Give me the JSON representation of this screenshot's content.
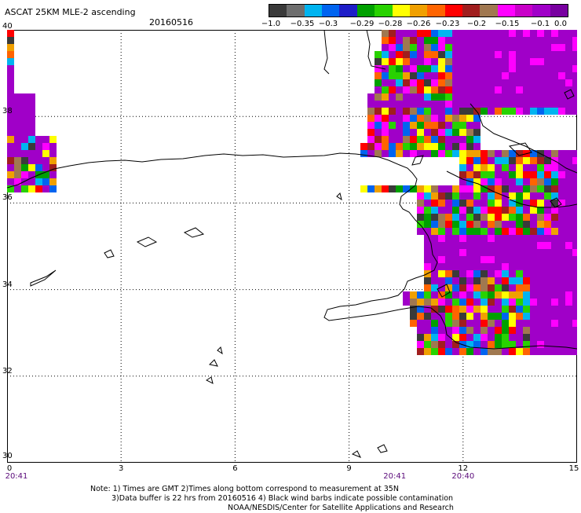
{
  "header": {
    "title": "ASCAT 25KM MLE-2 ascending",
    "date": "20160516"
  },
  "colorbar": {
    "colors": [
      "#3a3a3a",
      "#6e6e6e",
      "#00b4f0",
      "#0064f0",
      "#1e1ec8",
      "#00a000",
      "#28d200",
      "#ffff00",
      "#f0a000",
      "#ff6400",
      "#ff0000",
      "#a01e1e",
      "#a07850",
      "#ff00ff",
      "#c800c8",
      "#a000c8",
      "#7800a0"
    ],
    "labels": [
      "−1.0",
      "−0.35",
      "−0.3",
      "−0.29",
      "−0.28",
      "−0.26",
      "−0.23",
      "−0.2",
      "−0.15",
      "−0.1",
      "0.0"
    ]
  },
  "map": {
    "lat_range": [
      30,
      40
    ],
    "lon_range": [
      0,
      15
    ],
    "lat_labels": [
      "40",
      "38",
      "36",
      "34",
      "32",
      "30"
    ],
    "lon_labels": [
      "0",
      "3",
      "6",
      "9",
      "12",
      "15"
    ],
    "pass_times": [
      {
        "lon": 0,
        "time": "20:41"
      },
      {
        "lon": 10.2,
        "time": "20:41"
      },
      {
        "lon": 12,
        "time": "20:40"
      }
    ]
  },
  "notes": [
    "Note: 1) Times are GMT 2)Times along bottom correspond to measurement at 35N",
    "3)Data buffer is 22 hrs from 20160516 4) Black wind barbs indicate possible contamination",
    "NOAA/NESDIS/Center for Satellite Applications and Research"
  ]
}
